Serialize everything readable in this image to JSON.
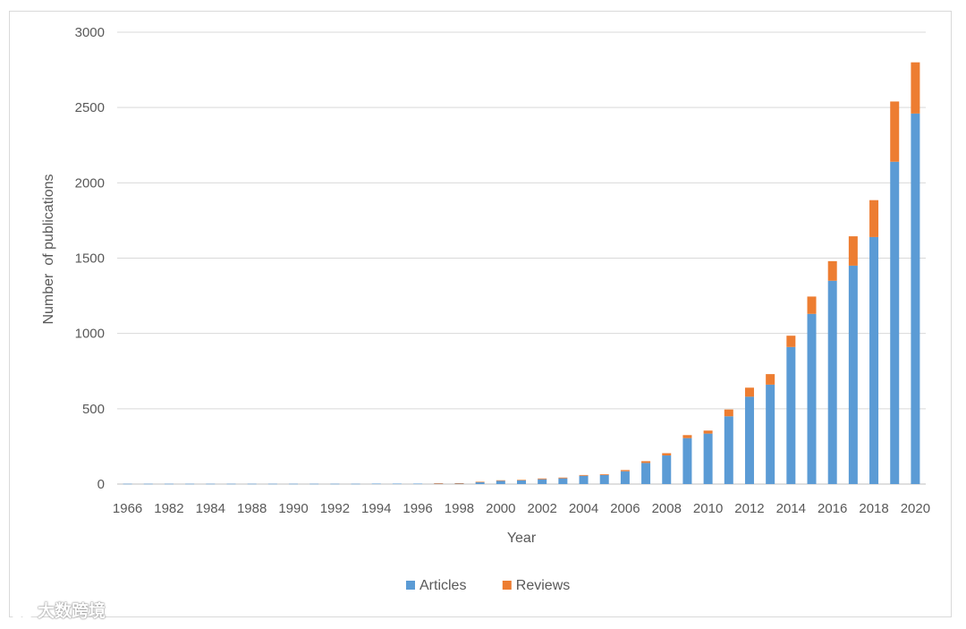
{
  "chart_data": {
    "type": "bar",
    "stacked": true,
    "title": "",
    "xlabel": "Year",
    "ylabel": "Number  of publications",
    "ylim": [
      0,
      3000
    ],
    "yticks": [
      0,
      500,
      1000,
      1500,
      2000,
      2500,
      3000
    ],
    "grid": true,
    "legend_position": "bottom",
    "categories": [
      "1966",
      "1981",
      "1982",
      "1983",
      "1984",
      "1987",
      "1988",
      "1989",
      "1990",
      "1991",
      "1992",
      "1993",
      "1994",
      "1995",
      "1996",
      "1997",
      "1998",
      "1999",
      "2000",
      "2001",
      "2002",
      "2003",
      "2004",
      "2005",
      "2006",
      "2007",
      "2008",
      "2009",
      "2010",
      "2011",
      "2012",
      "2013",
      "2014",
      "2015",
      "2016",
      "2017",
      "2018",
      "2019",
      "2020"
    ],
    "tick_labels": [
      "1966",
      "1982",
      "1984",
      "1988",
      "1990",
      "1992",
      "1994",
      "1996",
      "1998",
      "2000",
      "2002",
      "2004",
      "2006",
      "2008",
      "2010",
      "2012",
      "2014",
      "2016",
      "2018",
      "2020"
    ],
    "series": [
      {
        "name": "Articles",
        "color": "#5b9bd5",
        "values": [
          2,
          2,
          2,
          2,
          2,
          2,
          2,
          2,
          2,
          2,
          2,
          2,
          3,
          3,
          3,
          4,
          5,
          12,
          22,
          25,
          32,
          38,
          55,
          60,
          85,
          140,
          190,
          305,
          335,
          450,
          580,
          660,
          910,
          1130,
          1350,
          1450,
          1640,
          2140,
          2460
        ]
      },
      {
        "name": "Reviews",
        "color": "#ed7d31",
        "values": [
          0,
          0,
          0,
          0,
          0,
          0,
          0,
          0,
          0,
          0,
          0,
          0,
          0,
          0,
          0,
          1,
          1,
          3,
          3,
          3,
          5,
          5,
          5,
          5,
          8,
          12,
          15,
          20,
          20,
          45,
          60,
          70,
          75,
          115,
          130,
          195,
          245,
          400,
          340
        ]
      }
    ]
  },
  "watermark": {
    "text": "大数跨境",
    "icon": "logo-icon"
  }
}
